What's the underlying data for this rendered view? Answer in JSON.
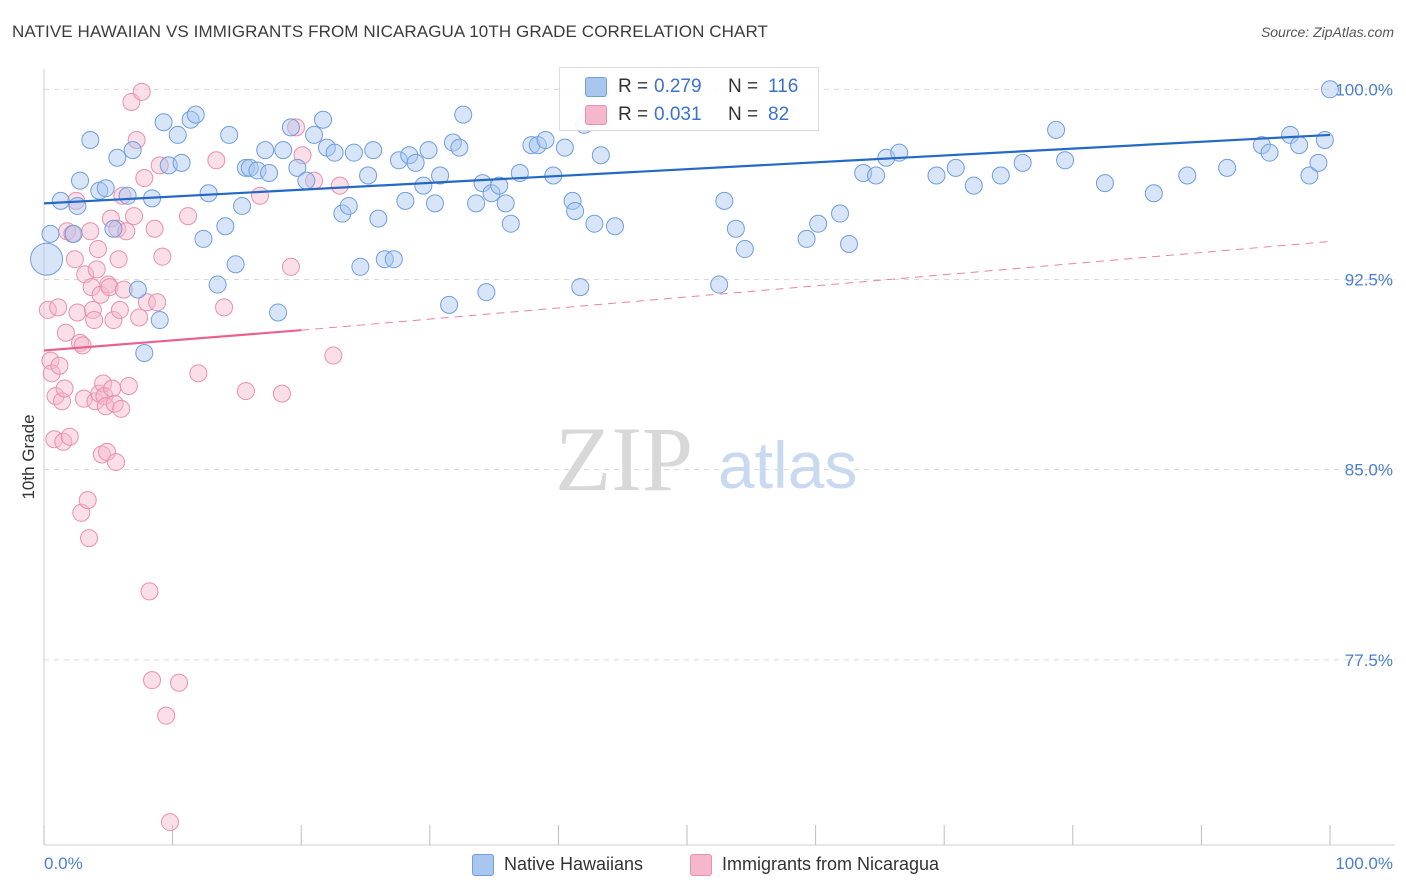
{
  "title": "NATIVE HAWAIIAN VS IMMIGRANTS FROM NICARAGUA 10TH GRADE CORRELATION CHART",
  "source": "Source: ZipAtlas.com",
  "watermark": {
    "zip": "ZIP",
    "atlas": "atlas"
  },
  "legend_top": [
    {
      "r_label": "R =",
      "r_value": "0.279",
      "n_label": "N =",
      "n_value": "116"
    },
    {
      "r_label": "R =",
      "r_value": "0.031",
      "n_label": "N =",
      "n_value": "82"
    }
  ],
  "legend_bottom": [
    "Native Hawaiians",
    "Immigrants from Nicaragua"
  ],
  "colors": {
    "blue_fill": "#a9c6ef",
    "blue_stroke": "#6e9ee0",
    "blue_line": "#2469c6",
    "pink_fill": "#f5b7cb",
    "pink_stroke": "#ea8fae",
    "pink_line": "#e8628f",
    "grid": "#d9d9d9",
    "tick_text": "#4a7fd0"
  },
  "chart_data": {
    "type": "scatter",
    "title": "NATIVE HAWAIIAN VS IMMIGRANTS FROM NICARAGUA 10TH GRADE CORRELATION CHART",
    "xlabel": "",
    "ylabel": "10th Grade",
    "xlim": [
      0,
      100
    ],
    "ylim": [
      70.2,
      100.8
    ],
    "x_tick_labels": [
      "0.0%",
      "100.0%"
    ],
    "y_ticks": [
      77.5,
      85.0,
      92.5,
      100.0
    ],
    "y_tick_labels": [
      "77.5%",
      "85.0%",
      "92.5%",
      "100.0%"
    ],
    "grid": true,
    "legend_position": "top-center",
    "series": [
      {
        "name": "Native Hawaiians",
        "R": 0.279,
        "N": 116,
        "trend": {
          "x": [
            0,
            100
          ],
          "y": [
            95.5,
            98.2
          ],
          "style": "solid"
        },
        "points": [
          [
            0.2,
            93.3
          ],
          [
            0.5,
            94.3
          ],
          [
            1.3,
            95.6
          ],
          [
            2.3,
            94.3
          ],
          [
            2.6,
            95.4
          ],
          [
            2.8,
            96.4
          ],
          [
            3.6,
            98.0
          ],
          [
            4.3,
            96.0
          ],
          [
            4.8,
            96.1
          ],
          [
            5.4,
            94.5
          ],
          [
            5.7,
            97.3
          ],
          [
            6.5,
            95.8
          ],
          [
            6.9,
            97.6
          ],
          [
            7.3,
            92.1
          ],
          [
            7.8,
            89.6
          ],
          [
            8.4,
            95.7
          ],
          [
            9.0,
            90.9
          ],
          [
            9.3,
            98.7
          ],
          [
            9.7,
            97.0
          ],
          [
            10.4,
            98.2
          ],
          [
            10.7,
            97.1
          ],
          [
            11.4,
            98.8
          ],
          [
            11.8,
            99.0
          ],
          [
            12.4,
            94.1
          ],
          [
            12.8,
            95.9
          ],
          [
            13.5,
            92.3
          ],
          [
            14.1,
            94.6
          ],
          [
            14.4,
            98.2
          ],
          [
            14.9,
            93.1
          ],
          [
            15.4,
            95.4
          ],
          [
            15.7,
            96.9
          ],
          [
            16.0,
            96.9
          ],
          [
            16.6,
            96.8
          ],
          [
            17.2,
            97.6
          ],
          [
            17.5,
            96.7
          ],
          [
            18.2,
            91.2
          ],
          [
            18.6,
            97.6
          ],
          [
            19.2,
            98.5
          ],
          [
            19.7,
            96.9
          ],
          [
            20.4,
            96.4
          ],
          [
            21.0,
            98.2
          ],
          [
            21.7,
            98.8
          ],
          [
            22.0,
            97.7
          ],
          [
            22.6,
            97.5
          ],
          [
            23.2,
            95.1
          ],
          [
            23.7,
            95.4
          ],
          [
            24.1,
            97.5
          ],
          [
            24.6,
            93.0
          ],
          [
            25.2,
            96.6
          ],
          [
            25.6,
            97.6
          ],
          [
            26.0,
            94.9
          ],
          [
            26.5,
            93.3
          ],
          [
            27.2,
            93.3
          ],
          [
            27.6,
            97.2
          ],
          [
            28.1,
            95.6
          ],
          [
            28.4,
            97.4
          ],
          [
            28.9,
            97.1
          ],
          [
            29.5,
            96.2
          ],
          [
            29.9,
            97.6
          ],
          [
            30.4,
            95.5
          ],
          [
            30.8,
            96.6
          ],
          [
            31.5,
            91.5
          ],
          [
            31.8,
            97.9
          ],
          [
            32.3,
            97.7
          ],
          [
            32.6,
            99.0
          ],
          [
            33.6,
            95.5
          ],
          [
            34.1,
            96.3
          ],
          [
            34.4,
            92.0
          ],
          [
            34.8,
            95.9
          ],
          [
            35.4,
            96.2
          ],
          [
            35.9,
            95.5
          ],
          [
            36.3,
            94.7
          ],
          [
            37.0,
            96.7
          ],
          [
            37.9,
            97.8
          ],
          [
            38.4,
            97.8
          ],
          [
            39.0,
            98.0
          ],
          [
            39.6,
            96.6
          ],
          [
            40.5,
            97.7
          ],
          [
            41.1,
            95.6
          ],
          [
            41.3,
            95.2
          ],
          [
            41.7,
            92.2
          ],
          [
            42.0,
            98.6
          ],
          [
            42.8,
            94.7
          ],
          [
            43.3,
            97.4
          ],
          [
            44.4,
            94.6
          ],
          [
            52.5,
            92.3
          ],
          [
            52.9,
            95.6
          ],
          [
            53.8,
            94.5
          ],
          [
            54.5,
            93.7
          ],
          [
            59.3,
            94.1
          ],
          [
            60.2,
            94.7
          ],
          [
            61.9,
            95.1
          ],
          [
            62.6,
            93.9
          ],
          [
            63.7,
            96.7
          ],
          [
            64.7,
            96.6
          ],
          [
            65.5,
            97.3
          ],
          [
            66.5,
            97.5
          ],
          [
            69.4,
            96.6
          ],
          [
            70.9,
            96.9
          ],
          [
            72.3,
            96.2
          ],
          [
            74.4,
            96.6
          ],
          [
            76.1,
            97.1
          ],
          [
            78.7,
            98.4
          ],
          [
            79.4,
            97.2
          ],
          [
            82.5,
            96.3
          ],
          [
            86.3,
            95.9
          ],
          [
            88.9,
            96.6
          ],
          [
            92.0,
            96.9
          ],
          [
            94.7,
            97.8
          ],
          [
            95.3,
            97.5
          ],
          [
            96.9,
            98.2
          ],
          [
            97.6,
            97.8
          ],
          [
            98.4,
            96.6
          ],
          [
            99.1,
            97.1
          ],
          [
            99.6,
            98.0
          ],
          [
            100.0,
            100.0
          ]
        ]
      },
      {
        "name": "Immigrants from Nicaragua",
        "R": 0.031,
        "N": 82,
        "trend": {
          "x": [
            0,
            20,
            100
          ],
          "y": [
            89.7,
            90.5,
            94.0
          ],
          "style": "solid-then-dashed"
        },
        "points": [
          [
            0.3,
            91.3
          ],
          [
            0.5,
            89.3
          ],
          [
            0.6,
            88.8
          ],
          [
            0.8,
            86.2
          ],
          [
            0.9,
            87.9
          ],
          [
            1.1,
            91.4
          ],
          [
            1.2,
            89.1
          ],
          [
            1.4,
            87.7
          ],
          [
            1.5,
            86.1
          ],
          [
            1.6,
            88.2
          ],
          [
            1.7,
            90.4
          ],
          [
            1.8,
            94.4
          ],
          [
            2.0,
            86.3
          ],
          [
            2.2,
            94.3
          ],
          [
            2.4,
            93.3
          ],
          [
            2.5,
            95.6
          ],
          [
            2.6,
            91.2
          ],
          [
            2.8,
            90.0
          ],
          [
            2.9,
            83.3
          ],
          [
            3.0,
            89.9
          ],
          [
            3.1,
            87.8
          ],
          [
            3.2,
            92.7
          ],
          [
            3.4,
            83.8
          ],
          [
            3.5,
            82.3
          ],
          [
            3.6,
            94.4
          ],
          [
            3.7,
            92.2
          ],
          [
            3.8,
            91.3
          ],
          [
            3.9,
            90.9
          ],
          [
            4.0,
            87.7
          ],
          [
            4.1,
            92.9
          ],
          [
            4.2,
            93.7
          ],
          [
            4.3,
            88.0
          ],
          [
            4.4,
            91.9
          ],
          [
            4.5,
            85.6
          ],
          [
            4.6,
            88.4
          ],
          [
            4.7,
            87.9
          ],
          [
            4.8,
            87.5
          ],
          [
            4.9,
            85.7
          ],
          [
            5.0,
            92.3
          ],
          [
            5.1,
            92.2
          ],
          [
            5.2,
            94.9
          ],
          [
            5.3,
            88.2
          ],
          [
            5.4,
            90.9
          ],
          [
            5.5,
            87.6
          ],
          [
            5.6,
            85.3
          ],
          [
            5.7,
            94.5
          ],
          [
            5.8,
            93.3
          ],
          [
            5.9,
            91.3
          ],
          [
            6.0,
            87.4
          ],
          [
            6.1,
            95.8
          ],
          [
            6.2,
            92.1
          ],
          [
            6.4,
            94.4
          ],
          [
            6.6,
            88.3
          ],
          [
            6.8,
            99.5
          ],
          [
            7.0,
            95.0
          ],
          [
            7.2,
            98.0
          ],
          [
            7.4,
            91.0
          ],
          [
            7.6,
            99.9
          ],
          [
            7.8,
            96.5
          ],
          [
            8.0,
            91.6
          ],
          [
            8.2,
            80.2
          ],
          [
            8.4,
            76.7
          ],
          [
            8.6,
            94.5
          ],
          [
            8.8,
            91.6
          ],
          [
            9.0,
            97.0
          ],
          [
            9.2,
            93.4
          ],
          [
            9.5,
            75.3
          ],
          [
            9.8,
            71.1
          ],
          [
            10.5,
            76.6
          ],
          [
            11.2,
            95.0
          ],
          [
            12.0,
            88.8
          ],
          [
            13.4,
            97.2
          ],
          [
            14.0,
            91.4
          ],
          [
            15.7,
            88.1
          ],
          [
            16.8,
            95.8
          ],
          [
            18.5,
            88.0
          ],
          [
            19.2,
            93.0
          ],
          [
            19.6,
            98.5
          ],
          [
            20.1,
            97.4
          ],
          [
            21.0,
            96.4
          ],
          [
            22.5,
            89.5
          ],
          [
            23.0,
            96.2
          ]
        ]
      }
    ]
  }
}
